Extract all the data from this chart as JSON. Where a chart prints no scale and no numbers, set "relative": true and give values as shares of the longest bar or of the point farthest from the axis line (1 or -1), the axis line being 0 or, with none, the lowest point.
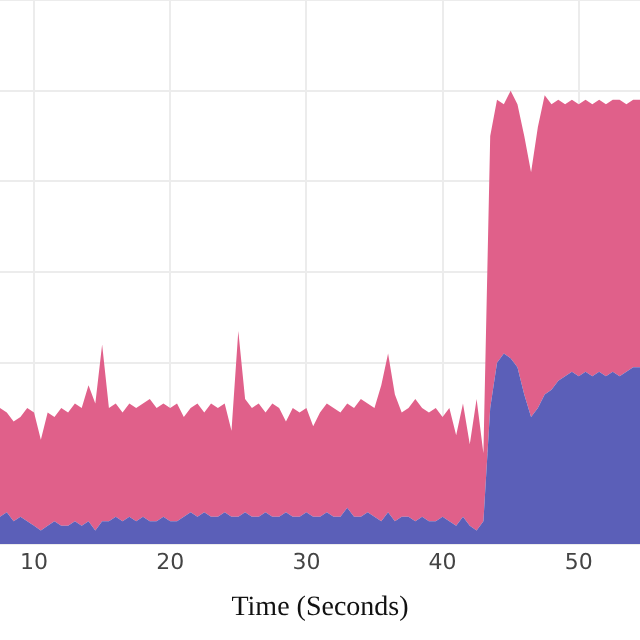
{
  "chart_data": {
    "type": "area",
    "xlabel": "Time (Seconds)",
    "relative": true,
    "stacked": true,
    "grid": true,
    "legend": false,
    "x": [
      7.5,
      8,
      8.5,
      9,
      9.5,
      10,
      10.5,
      11,
      11.5,
      12,
      12.5,
      13,
      13.5,
      14,
      14.5,
      15,
      15.5,
      16,
      16.5,
      17,
      17.5,
      18,
      18.5,
      19,
      19.5,
      20,
      20.5,
      21,
      21.5,
      22,
      22.5,
      23,
      23.5,
      24,
      24.5,
      25,
      25.5,
      26,
      26.5,
      27,
      27.5,
      28,
      28.5,
      29,
      29.5,
      30,
      30.5,
      31,
      31.5,
      32,
      32.5,
      33,
      33.5,
      34,
      34.5,
      35,
      35.5,
      36,
      36.5,
      37,
      37.5,
      38,
      38.5,
      39,
      39.5,
      40,
      40.5,
      41,
      41.5,
      42,
      42.5,
      43,
      43.5,
      44,
      44.5,
      45,
      45.5,
      46,
      46.5,
      47,
      47.5,
      48,
      48.5,
      49,
      49.5,
      50,
      50.5,
      51,
      51.5,
      52,
      52.5,
      53,
      53.5,
      54,
      54.5
    ],
    "xlim": [
      7.5,
      54.5
    ],
    "xticks": [
      10,
      20,
      30,
      40,
      50
    ],
    "series": [
      {
        "color": "#5b5fb8",
        "values": [
          0.06,
          0.07,
          0.05,
          0.06,
          0.05,
          0.04,
          0.03,
          0.04,
          0.05,
          0.04,
          0.04,
          0.05,
          0.04,
          0.05,
          0.03,
          0.05,
          0.05,
          0.06,
          0.05,
          0.06,
          0.05,
          0.06,
          0.05,
          0.05,
          0.06,
          0.05,
          0.05,
          0.06,
          0.07,
          0.06,
          0.07,
          0.06,
          0.06,
          0.07,
          0.06,
          0.06,
          0.07,
          0.06,
          0.06,
          0.07,
          0.06,
          0.06,
          0.07,
          0.06,
          0.06,
          0.07,
          0.06,
          0.06,
          0.07,
          0.06,
          0.06,
          0.08,
          0.06,
          0.06,
          0.07,
          0.06,
          0.05,
          0.07,
          0.05,
          0.06,
          0.06,
          0.05,
          0.06,
          0.05,
          0.05,
          0.06,
          0.05,
          0.04,
          0.06,
          0.04,
          0.03,
          0.05,
          0.3,
          0.4,
          0.42,
          0.41,
          0.39,
          0.33,
          0.28,
          0.3,
          0.33,
          0.34,
          0.36,
          0.37,
          0.38,
          0.37,
          0.38,
          0.37,
          0.38,
          0.37,
          0.38,
          0.37,
          0.38,
          0.39,
          0.39
        ]
      },
      {
        "color": "#e0608a",
        "values": [
          0.24,
          0.22,
          0.22,
          0.22,
          0.25,
          0.25,
          0.2,
          0.25,
          0.23,
          0.26,
          0.25,
          0.26,
          0.26,
          0.3,
          0.28,
          0.39,
          0.25,
          0.25,
          0.24,
          0.25,
          0.25,
          0.25,
          0.27,
          0.25,
          0.25,
          0.25,
          0.26,
          0.22,
          0.23,
          0.25,
          0.22,
          0.25,
          0.24,
          0.24,
          0.19,
          0.41,
          0.25,
          0.24,
          0.25,
          0.22,
          0.25,
          0.24,
          0.2,
          0.24,
          0.23,
          0.23,
          0.2,
          0.23,
          0.24,
          0.24,
          0.23,
          0.23,
          0.24,
          0.26,
          0.24,
          0.24,
          0.3,
          0.35,
          0.28,
          0.23,
          0.24,
          0.27,
          0.24,
          0.24,
          0.25,
          0.22,
          0.25,
          0.2,
          0.25,
          0.18,
          0.29,
          0.15,
          0.6,
          0.58,
          0.55,
          0.59,
          0.58,
          0.57,
          0.54,
          0.62,
          0.66,
          0.63,
          0.62,
          0.6,
          0.6,
          0.6,
          0.6,
          0.6,
          0.6,
          0.6,
          0.6,
          0.61,
          0.59,
          0.59,
          0.59
        ]
      }
    ]
  }
}
